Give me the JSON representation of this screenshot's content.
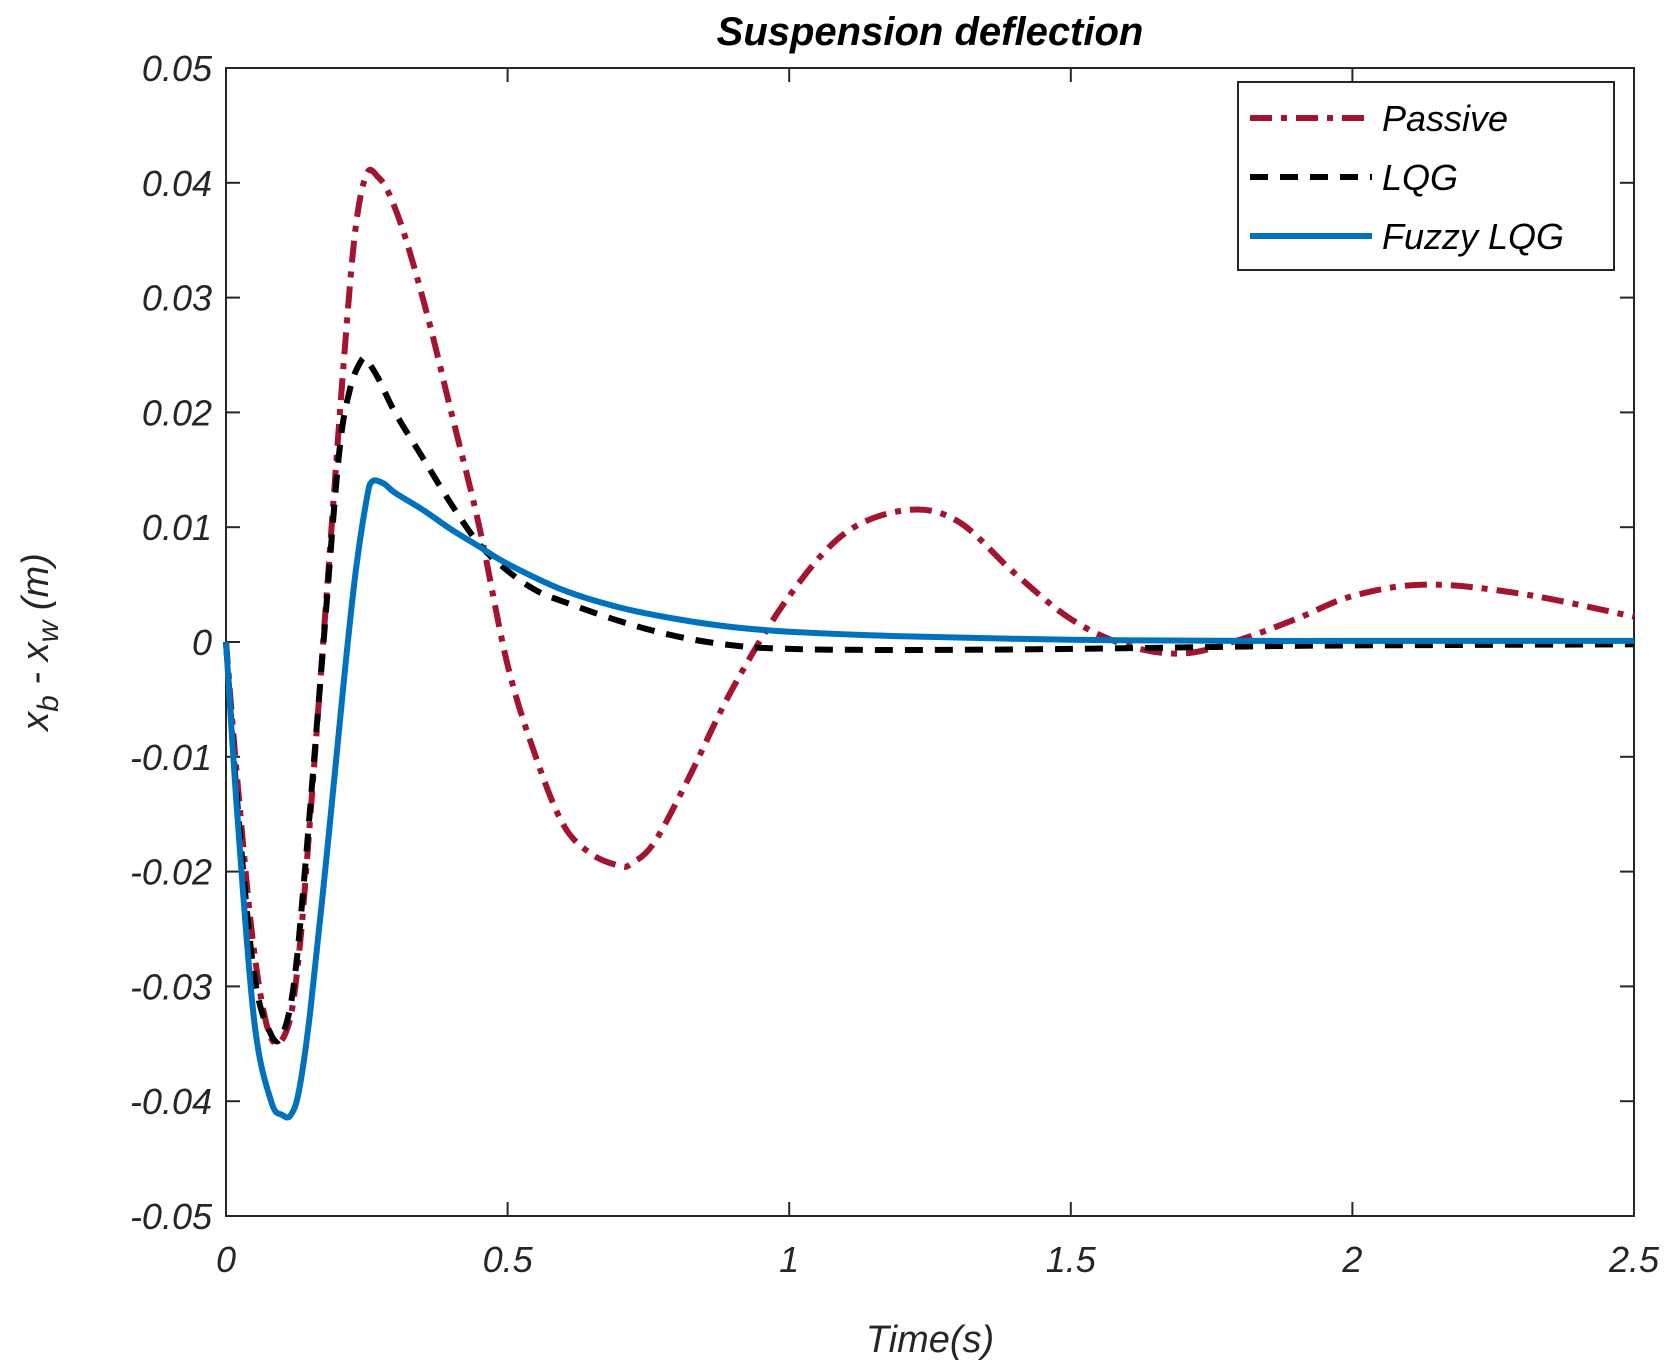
{
  "chart_data": {
    "type": "line",
    "title": "Suspension deflection",
    "xlabel": "Time(s)",
    "ylabel": {
      "parts": [
        "x",
        "b",
        " - x",
        "w",
        " (m)"
      ]
    },
    "xlim": [
      0,
      2.5
    ],
    "ylim": [
      -0.05,
      0.05
    ],
    "xticks": [
      0,
      0.5,
      1,
      1.5,
      2,
      2.5
    ],
    "xtick_labels": [
      "0",
      "0.5",
      "1",
      "1.5",
      "2",
      "2.5"
    ],
    "yticks": [
      -0.05,
      -0.04,
      -0.03,
      -0.02,
      -0.01,
      0,
      0.01,
      0.02,
      0.03,
      0.04,
      0.05
    ],
    "ytick_labels": [
      "-0.05",
      "-0.04",
      "-0.03",
      "-0.02",
      "-0.01",
      "0",
      "0.01",
      "0.02",
      "0.03",
      "0.04",
      "0.05"
    ],
    "legend_position": "top-right",
    "series": [
      {
        "name": "Passive",
        "color": "#A2142F",
        "style": "dashdot",
        "x": [
          0,
          0.02,
          0.05,
          0.08,
          0.11,
          0.13,
          0.15,
          0.18,
          0.21,
          0.23,
          0.25,
          0.27,
          0.29,
          0.32,
          0.36,
          0.4,
          0.45,
          0.5,
          0.55,
          0.6,
          0.65,
          0.7,
          0.72,
          0.76,
          0.82,
          0.9,
          1.0,
          1.1,
          1.21,
          1.3,
          1.4,
          1.5,
          1.6,
          1.7,
          1.8,
          1.9,
          2.0,
          2.13,
          2.3,
          2.5
        ],
        "y": [
          0,
          -0.012,
          -0.027,
          -0.0345,
          -0.0335,
          -0.027,
          -0.015,
          0.005,
          0.025,
          0.036,
          0.0408,
          0.0405,
          0.039,
          0.035,
          0.028,
          0.02,
          0.01,
          -0.002,
          -0.01,
          -0.016,
          -0.0185,
          -0.0195,
          -0.0193,
          -0.0175,
          -0.012,
          -0.004,
          0.004,
          0.0095,
          0.0115,
          0.0105,
          0.006,
          0.002,
          -0.0003,
          -0.001,
          0.0002,
          0.002,
          0.004,
          0.005,
          0.0042,
          0.0022
        ]
      },
      {
        "name": "LQG",
        "color": "#000000",
        "style": "dashed",
        "x": [
          0,
          0.02,
          0.05,
          0.08,
          0.1,
          0.12,
          0.14,
          0.17,
          0.2,
          0.22,
          0.24,
          0.25,
          0.27,
          0.3,
          0.35,
          0.4,
          0.45,
          0.5,
          0.55,
          0.6,
          0.7,
          0.8,
          0.9,
          1.0,
          1.2,
          1.5,
          1.8,
          2.0,
          2.5
        ],
        "y": [
          0,
          -0.014,
          -0.029,
          -0.0342,
          -0.0342,
          -0.03,
          -0.02,
          -0.002,
          0.016,
          0.022,
          0.0245,
          0.0245,
          0.023,
          0.02,
          0.016,
          0.012,
          0.0085,
          0.0062,
          0.0045,
          0.0035,
          0.0018,
          0.0005,
          -0.0003,
          -0.0006,
          -0.0007,
          -0.0006,
          -0.0004,
          -0.0003,
          -0.0002
        ]
      },
      {
        "name": "Fuzzy LQG",
        "color": "#0072BD",
        "style": "solid",
        "x": [
          0,
          0.02,
          0.05,
          0.08,
          0.1,
          0.115,
          0.13,
          0.15,
          0.18,
          0.21,
          0.23,
          0.25,
          0.26,
          0.28,
          0.3,
          0.35,
          0.4,
          0.45,
          0.5,
          0.6,
          0.7,
          0.8,
          0.9,
          1.0,
          1.2,
          1.5,
          1.8,
          2.0,
          2.5
        ],
        "y": [
          0,
          -0.015,
          -0.033,
          -0.04,
          -0.0412,
          -0.0412,
          -0.039,
          -0.032,
          -0.018,
          -0.003,
          0.006,
          0.0125,
          0.014,
          0.0138,
          0.013,
          0.0115,
          0.0098,
          0.0083,
          0.0068,
          0.0045,
          0.003,
          0.002,
          0.0013,
          0.0009,
          0.0005,
          0.0002,
          0.0001,
          0.0001,
          0.0001
        ]
      }
    ]
  }
}
